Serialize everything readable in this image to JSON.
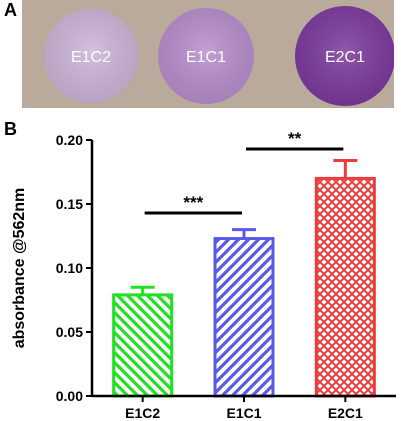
{
  "panel_a": {
    "letter": "A",
    "disks": [
      {
        "label": "E1C2",
        "color": "#cdb6d9"
      },
      {
        "label": "E1C1",
        "color": "#b98fce"
      },
      {
        "label": "E2C1",
        "color": "#7d3a9e"
      }
    ],
    "background_color": "#b9aa9c"
  },
  "panel_b": {
    "letter": "B"
  },
  "chart_data": {
    "type": "bar",
    "categories": [
      "E1C2",
      "E1C1",
      "E2C1"
    ],
    "values": [
      0.079,
      0.123,
      0.17
    ],
    "errors": [
      0.006,
      0.007,
      0.014
    ],
    "colors": [
      "#22e022",
      "#5a5ae8",
      "#ee3c3c"
    ],
    "patterns": [
      "diagonal-back",
      "diagonal-forward",
      "crosshatch"
    ],
    "ylabel": "absorbance @562nm",
    "xlabel": "",
    "title": "",
    "ylim": [
      0,
      0.2
    ],
    "yticks": [
      0.0,
      0.05,
      0.1,
      0.15,
      0.2
    ],
    "ytick_labels": [
      "0.00",
      "0.05",
      "0.10",
      "0.15",
      "0.20"
    ],
    "grid": false,
    "significance": [
      {
        "from": 0,
        "to": 1,
        "label": "***",
        "y": 0.143
      },
      {
        "from": 1,
        "to": 2,
        "label": "**",
        "y": 0.193
      }
    ]
  }
}
